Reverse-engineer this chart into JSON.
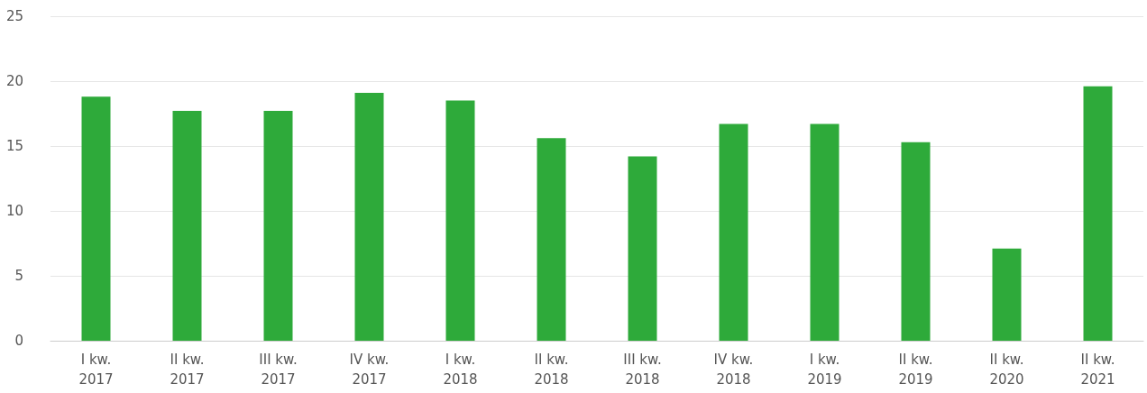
{
  "chart_data": {
    "type": "bar",
    "categories": [
      "I kw.\n2017",
      "II kw.\n2017",
      "III kw.\n2017",
      "IV kw.\n2017",
      "I kw.\n2018",
      "II kw.\n2018",
      "III kw.\n2018",
      "IV kw.\n2018",
      "I kw.\n2019",
      "II kw.\n2019",
      "II kw.\n2020",
      "II kw.\n2021"
    ],
    "values": [
      18.8,
      17.7,
      17.7,
      19.1,
      18.5,
      15.6,
      14.2,
      16.7,
      16.7,
      15.3,
      7.1,
      19.6
    ],
    "color": "#2eaa3a",
    "ylim": [
      0,
      25
    ],
    "yticks": [
      0,
      5,
      10,
      15,
      20,
      25
    ],
    "grid": "y"
  }
}
